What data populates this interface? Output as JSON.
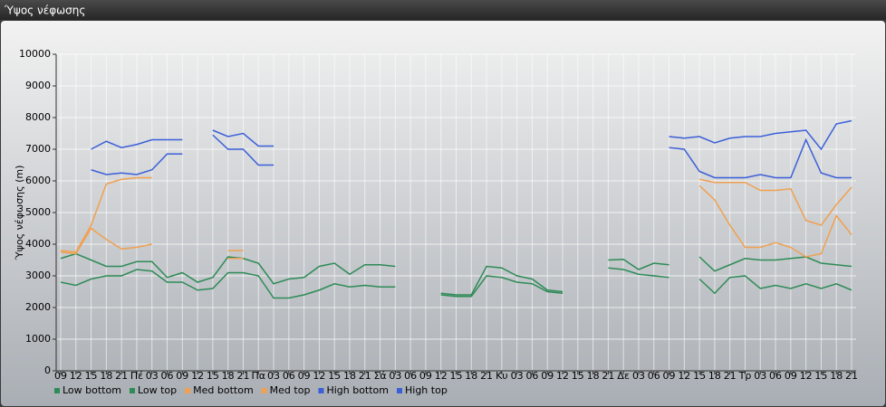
{
  "chart_data": {
    "type": "line",
    "title": "Ύψος νέφωσης",
    "y_label": "Ύψος νέφωσης (m)",
    "categories": [
      "09",
      "12",
      "15",
      "18",
      "21",
      "Πέ",
      "03",
      "06",
      "09",
      "12",
      "15",
      "18",
      "21",
      "Πα",
      "03",
      "06",
      "09",
      "12",
      "15",
      "18",
      "21",
      "Σά",
      "03",
      "06",
      "09",
      "12",
      "15",
      "18",
      "21",
      "Κυ",
      "03",
      "06",
      "09",
      "12",
      "15",
      "18",
      "21",
      "Δε",
      "03",
      "06",
      "09",
      "12",
      "15",
      "18",
      "21",
      "Τρ",
      "03",
      "06",
      "09",
      "12",
      "15",
      "18",
      "21"
    ],
    "ylim": [
      0,
      10000
    ],
    "yticks": [
      0,
      1000,
      2000,
      3000,
      4000,
      5000,
      6000,
      7000,
      8000,
      9000,
      10000
    ],
    "grid": true,
    "series": [
      {
        "name": "Low bottom",
        "color": "#2e8b57",
        "values": [
          2800,
          2700,
          2900,
          3000,
          3000,
          3200,
          3150,
          2800,
          2800,
          2550,
          2600,
          3100,
          3100,
          3000,
          2300,
          2300,
          2400,
          2550,
          2750,
          2650,
          2700,
          2650,
          2650,
          null,
          null,
          2400,
          2350,
          2350,
          3000,
          2950,
          2800,
          2750,
          2500,
          2450,
          null,
          null,
          3250,
          3200,
          3050,
          3000,
          2950,
          null,
          2900,
          2450,
          2950,
          3000,
          2600,
          2700,
          2600,
          2750,
          2600,
          2750,
          2550
        ]
      },
      {
        "name": "Low top",
        "color": "#2e8b57",
        "values": [
          3550,
          3700,
          3500,
          3300,
          3300,
          3450,
          3450,
          2950,
          3100,
          2800,
          2950,
          3600,
          3550,
          3400,
          2750,
          2900,
          2950,
          3300,
          3400,
          3050,
          3350,
          3350,
          3300,
          null,
          null,
          2450,
          2400,
          2400,
          3300,
          3250,
          3000,
          2900,
          2550,
          2500,
          null,
          null,
          3500,
          3520,
          3200,
          3400,
          3350,
          null,
          3600,
          3150,
          3350,
          3550,
          3500,
          3500,
          3550,
          3600,
          3400,
          3350,
          3300
        ]
      },
      {
        "name": "Med bottom",
        "color": "#f0a050",
        "values": [
          3750,
          3700,
          4500,
          4150,
          3850,
          3900,
          4000,
          null,
          null,
          null,
          null,
          3550,
          3550,
          null,
          null,
          null,
          null,
          null,
          null,
          null,
          null,
          null,
          null,
          null,
          null,
          null,
          null,
          null,
          null,
          null,
          null,
          null,
          null,
          null,
          null,
          null,
          null,
          null,
          null,
          null,
          null,
          null,
          5850,
          5400,
          4600,
          3900,
          3900,
          4050,
          3900,
          3600,
          3700,
          4900,
          4300
        ]
      },
      {
        "name": "Med top",
        "color": "#f0a050",
        "values": [
          3800,
          3750,
          4600,
          5900,
          6050,
          6100,
          6100,
          null,
          null,
          null,
          null,
          3800,
          3800,
          null,
          null,
          null,
          null,
          null,
          null,
          null,
          null,
          null,
          null,
          null,
          null,
          null,
          null,
          null,
          null,
          null,
          null,
          null,
          null,
          null,
          null,
          null,
          null,
          null,
          null,
          null,
          null,
          null,
          6050,
          5950,
          5950,
          5950,
          5700,
          5700,
          5750,
          4750,
          4600,
          5250,
          5800
        ]
      },
      {
        "name": "High bottom",
        "color": "#3b5fd9",
        "values": [
          null,
          null,
          6350,
          6200,
          6250,
          6200,
          6350,
          6850,
          6850,
          null,
          7450,
          7000,
          7000,
          6500,
          6500,
          null,
          null,
          null,
          null,
          null,
          null,
          null,
          null,
          null,
          null,
          null,
          null,
          null,
          null,
          null,
          null,
          null,
          null,
          null,
          null,
          null,
          null,
          null,
          null,
          null,
          7050,
          7000,
          6300,
          6100,
          6100,
          6100,
          6200,
          6100,
          6100,
          7300,
          6250,
          6100,
          6100
        ]
      },
      {
        "name": "High top",
        "color": "#3b5fd9",
        "values": [
          null,
          null,
          7000,
          7250,
          7050,
          7150,
          7300,
          7300,
          7300,
          null,
          7600,
          7400,
          7500,
          7100,
          7100,
          null,
          null,
          null,
          null,
          null,
          null,
          null,
          null,
          null,
          null,
          null,
          null,
          null,
          null,
          null,
          null,
          null,
          null,
          null,
          null,
          null,
          null,
          null,
          null,
          null,
          7400,
          7350,
          7400,
          7200,
          7350,
          7400,
          7400,
          7500,
          7550,
          7600,
          7000,
          7800,
          7900
        ]
      }
    ]
  }
}
